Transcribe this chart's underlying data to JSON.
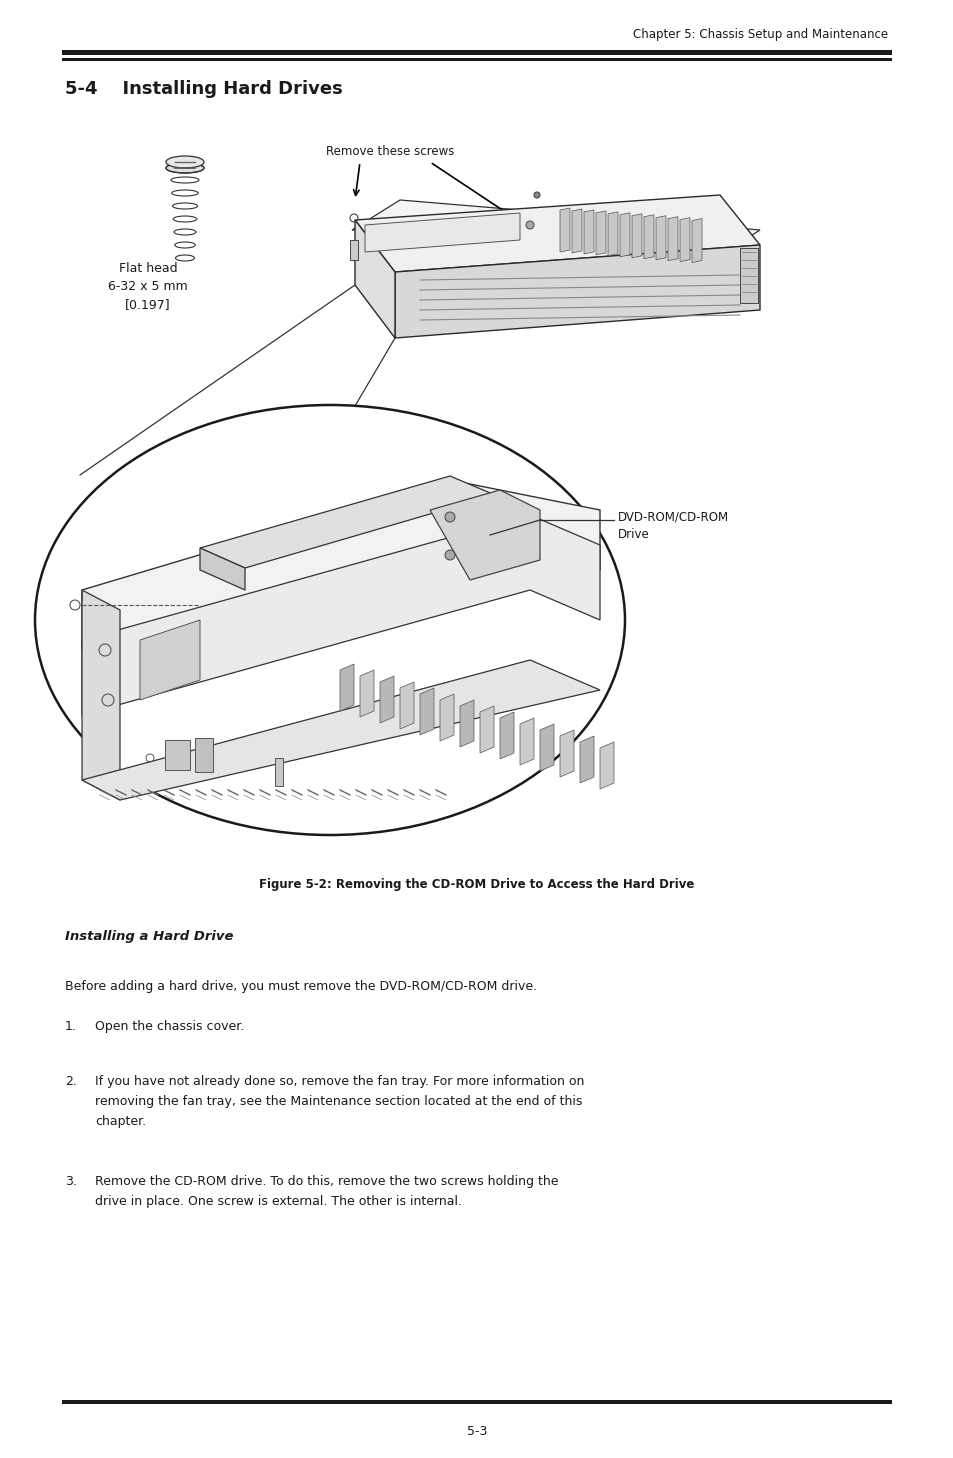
{
  "header_text": "Chapter 5: Chassis Setup and Maintenance",
  "header_line_color": "#1a1a1a",
  "title": "5-4    Installing Hard Drives",
  "figure_caption": "Figure 5-2: Removing the CD-ROM Drive to Access the Hard Drive",
  "section_title": "Installing a Hard Drive",
  "label_remove_screws": "Remove these screws",
  "label_flat_head_line1": "Flat head",
  "label_flat_head_line2": "6-32 x 5 mm",
  "label_flat_head_line3": "[0.197]",
  "label_dvd_rom_line1": "DVD-ROM/CD-ROM",
  "label_dvd_rom_line2": "Drive",
  "para0": "Before adding a hard drive, you must remove the DVD-ROM/CD-ROM drive.",
  "item1_num": "1.",
  "item1": "Open the chassis cover.",
  "item2_num": "2.",
  "item2_line1": "If you have not already done so, remove the fan tray. For more information on",
  "item2_line2": "removing the fan tray, see the Maintenance section located at the end of this",
  "item2_line3": "chapter.",
  "item3_num": "3.",
  "item3_line1": "Remove the CD-ROM drive. To do this, remove the two screws holding the",
  "item3_line2": "drive in place. One screw is external. The other is internal.",
  "footer_text": "5-3",
  "bg_color": "#ffffff",
  "text_color": "#1a1a1a",
  "page_width": 9.54,
  "page_height": 14.58
}
